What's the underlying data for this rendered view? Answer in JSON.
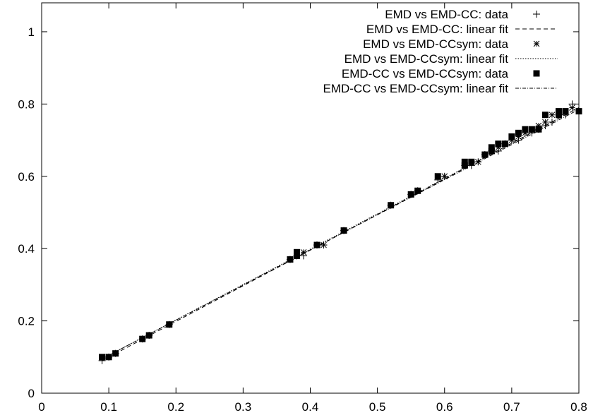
{
  "chart_data": {
    "type": "scatter",
    "title": "",
    "xlabel": "",
    "ylabel": "",
    "xlim": [
      0,
      0.8
    ],
    "ylim": [
      0,
      1.08
    ],
    "xticks": [
      "0",
      "0.1",
      "0.2",
      "0.3",
      "0.4",
      "0.5",
      "0.6",
      "0.7",
      "0.8"
    ],
    "yticks": [
      "0",
      "0.2",
      "0.4",
      "0.6",
      "0.8",
      "1"
    ],
    "grid": false,
    "legend_position": "top-right",
    "series": [
      {
        "name": "EMD vs EMD-CC: data",
        "kind": "points",
        "marker": "plus",
        "x": [
          0.09,
          0.1,
          0.11,
          0.15,
          0.16,
          0.19,
          0.37,
          0.38,
          0.39,
          0.41,
          0.42,
          0.45,
          0.52,
          0.55,
          0.56,
          0.59,
          0.6,
          0.63,
          0.64,
          0.65,
          0.66,
          0.67,
          0.68,
          0.69,
          0.7,
          0.71,
          0.72,
          0.73,
          0.74,
          0.75,
          0.76,
          0.77,
          0.78,
          0.79
        ],
        "y": [
          0.09,
          0.1,
          0.11,
          0.15,
          0.16,
          0.19,
          0.37,
          0.38,
          0.38,
          0.41,
          0.41,
          0.45,
          0.52,
          0.55,
          0.56,
          0.59,
          0.6,
          0.63,
          0.63,
          0.64,
          0.66,
          0.67,
          0.67,
          0.69,
          0.7,
          0.7,
          0.72,
          0.72,
          0.73,
          0.74,
          0.75,
          0.77,
          0.77,
          0.8
        ]
      },
      {
        "name": "EMD vs EMD-CC: linear fit",
        "kind": "line",
        "dash": "6,4",
        "x": [
          0.09,
          0.8
        ],
        "y": [
          0.09,
          0.79
        ]
      },
      {
        "name": "EMD vs EMD-CCsym: data",
        "kind": "points",
        "marker": "star",
        "x": [
          0.09,
          0.1,
          0.11,
          0.15,
          0.16,
          0.19,
          0.37,
          0.38,
          0.39,
          0.41,
          0.42,
          0.45,
          0.52,
          0.55,
          0.56,
          0.59,
          0.6,
          0.63,
          0.64,
          0.65,
          0.66,
          0.67,
          0.68,
          0.69,
          0.7,
          0.71,
          0.72,
          0.73,
          0.74,
          0.75,
          0.76,
          0.77,
          0.78,
          0.79
        ],
        "y": [
          0.1,
          0.1,
          0.11,
          0.15,
          0.16,
          0.19,
          0.37,
          0.38,
          0.39,
          0.41,
          0.41,
          0.45,
          0.52,
          0.55,
          0.56,
          0.6,
          0.6,
          0.64,
          0.64,
          0.64,
          0.66,
          0.67,
          0.68,
          0.69,
          0.7,
          0.71,
          0.72,
          0.73,
          0.74,
          0.75,
          0.77,
          0.77,
          0.78,
          0.79
        ]
      },
      {
        "name": "EMD vs EMD-CCsym: linear fit",
        "kind": "line",
        "dash": "1.5,2",
        "x": [
          0.09,
          0.8
        ],
        "y": [
          0.095,
          0.79
        ]
      },
      {
        "name": "EMD-CC vs EMD-CCsym: data",
        "kind": "points",
        "marker": "square",
        "x": [
          0.09,
          0.1,
          0.11,
          0.15,
          0.16,
          0.19,
          0.37,
          0.38,
          0.38,
          0.41,
          0.45,
          0.52,
          0.55,
          0.56,
          0.59,
          0.63,
          0.63,
          0.64,
          0.66,
          0.67,
          0.67,
          0.68,
          0.69,
          0.7,
          0.71,
          0.72,
          0.73,
          0.74,
          0.75,
          0.77,
          0.77,
          0.78,
          0.8
        ],
        "y": [
          0.1,
          0.1,
          0.11,
          0.15,
          0.16,
          0.19,
          0.37,
          0.38,
          0.39,
          0.41,
          0.45,
          0.52,
          0.55,
          0.56,
          0.6,
          0.63,
          0.64,
          0.64,
          0.66,
          0.67,
          0.68,
          0.69,
          0.69,
          0.71,
          0.72,
          0.73,
          0.73,
          0.73,
          0.77,
          0.77,
          0.78,
          0.78,
          0.78
        ]
      },
      {
        "name": "EMD-CC vs EMD-CCsym: linear fit",
        "kind": "line",
        "dash": "5,2,1,2",
        "x": [
          0.09,
          0.8
        ],
        "y": [
          0.095,
          0.785
        ]
      }
    ]
  }
}
